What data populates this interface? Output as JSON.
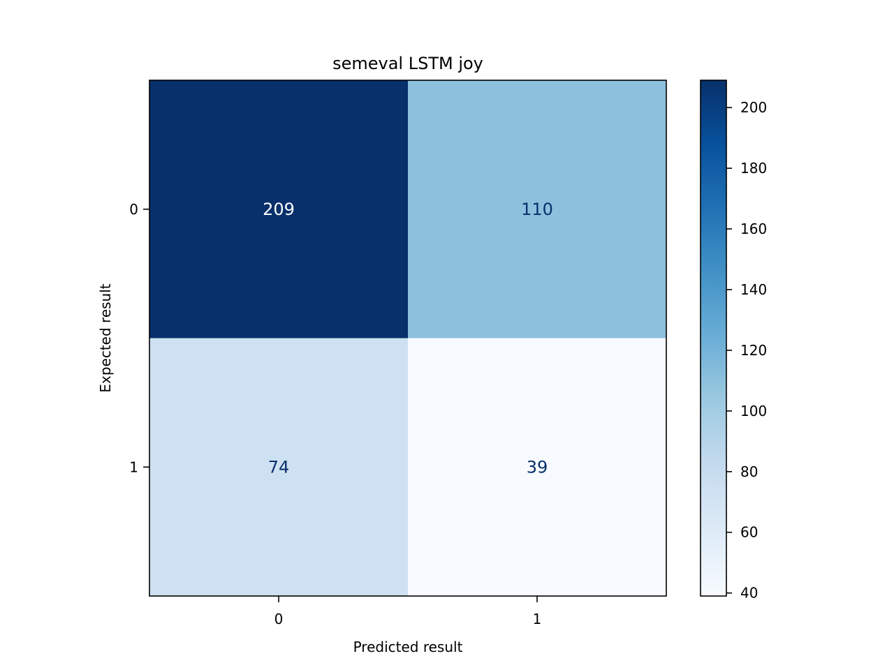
{
  "chart_data": {
    "type": "heatmap",
    "title": "semeval LSTM joy",
    "xlabel": "Predicted result",
    "ylabel": "Expected result",
    "x_categories": [
      "0",
      "1"
    ],
    "y_categories": [
      "0",
      "1"
    ],
    "values": [
      [
        209,
        110
      ],
      [
        74,
        39
      ]
    ],
    "colormap": "Blues",
    "colorbar": {
      "range": [
        39,
        209
      ],
      "ticks": [
        40,
        60,
        80,
        100,
        120,
        140,
        160,
        180,
        200
      ]
    },
    "text_colors": {
      "light": "#ffffff",
      "dark": "#08306b"
    }
  }
}
